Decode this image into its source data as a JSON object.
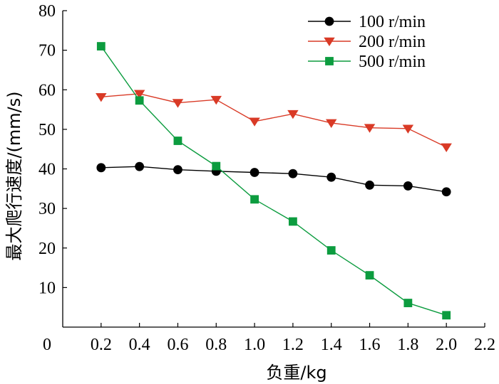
{
  "chart_data": {
    "type": "line",
    "xlabel": "负重/kg",
    "ylabel": "最大爬行速度/(mm/s)",
    "xlim": [
      0,
      2.2
    ],
    "ylim": [
      0,
      80
    ],
    "xticks": [
      "0",
      "0.2",
      "0.4",
      "0.6",
      "0.8",
      "1.0",
      "1.2",
      "1.4",
      "1.6",
      "1.8",
      "2.0",
      "2.2"
    ],
    "yticks": [
      "10",
      "20",
      "30",
      "40",
      "50",
      "60",
      "70",
      "80"
    ],
    "x": [
      0.2,
      0.4,
      0.6,
      0.8,
      1.0,
      1.2,
      1.4,
      1.6,
      1.8,
      2.0
    ],
    "grid": false,
    "legend_position": "top-right",
    "series": [
      {
        "name": "100 r/min",
        "color": "#000000",
        "marker": "circle",
        "values": [
          40.3,
          40.6,
          39.8,
          39.4,
          39.1,
          38.8,
          37.9,
          35.9,
          35.7,
          34.2
        ]
      },
      {
        "name": "200 r/min",
        "color": "#d93a26",
        "marker": "triangle-down",
        "values": [
          58.2,
          59.0,
          56.7,
          57.5,
          52.0,
          53.9,
          51.6,
          50.4,
          50.2,
          45.5
        ]
      },
      {
        "name": "500 r/min",
        "color": "#0c9c3f",
        "marker": "square",
        "values": [
          71.0,
          57.3,
          47.1,
          40.7,
          32.3,
          26.7,
          19.4,
          13.1,
          6.1,
          3.0
        ]
      }
    ]
  }
}
